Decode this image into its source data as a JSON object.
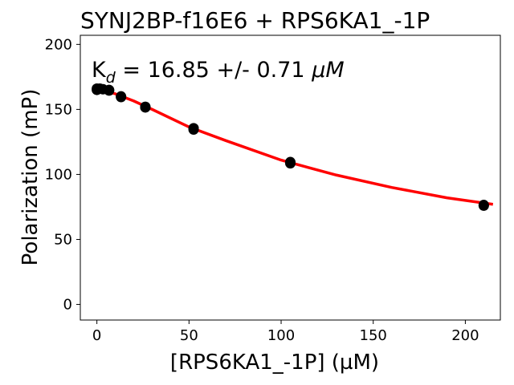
{
  "chart_data": {
    "type": "scatter",
    "title": "SYNJ2BP-f16E6 + RPS6KA1_-1P",
    "xlabel": "[RPS6KA1_-1P] (µM)",
    "ylabel": "Polarization (mP)",
    "annotation": {
      "prefix": "K",
      "subscript": "d",
      "text": " = 16.85 +/- 0.71 ",
      "unit": "μM"
    },
    "xlim": [
      -9,
      219
    ],
    "ylim": [
      -12,
      207
    ],
    "xticks": [
      0,
      50,
      100,
      150,
      200
    ],
    "yticks": [
      0,
      50,
      100,
      150,
      200
    ],
    "grid": false,
    "points": [
      {
        "x": 0,
        "y": 166
      },
      {
        "x": 0,
        "y": 165
      },
      {
        "x": 1.6,
        "y": 166
      },
      {
        "x": 3.3,
        "y": 165.5
      },
      {
        "x": 6.6,
        "y": 164.5
      },
      {
        "x": 6.6,
        "y": 165
      },
      {
        "x": 13.1,
        "y": 160
      },
      {
        "x": 13.1,
        "y": 159.5
      },
      {
        "x": 26.3,
        "y": 152
      },
      {
        "x": 26.3,
        "y": 151.5
      },
      {
        "x": 52.5,
        "y": 135.5
      },
      {
        "x": 52.5,
        "y": 134.5
      },
      {
        "x": 105,
        "y": 109.5
      },
      {
        "x": 105,
        "y": 108.5
      },
      {
        "x": 210,
        "y": 76.5
      },
      {
        "x": 210,
        "y": 76
      }
    ],
    "fit": {
      "x_range": [
        0,
        215
      ],
      "points": [
        [
          0,
          166
        ],
        [
          10,
          162
        ],
        [
          20,
          156.5
        ],
        [
          30,
          150
        ],
        [
          50,
          136.5
        ],
        [
          70,
          126
        ],
        [
          100,
          111
        ],
        [
          130,
          99.5
        ],
        [
          160,
          90
        ],
        [
          190,
          82
        ],
        [
          215,
          77
        ]
      ]
    },
    "colors": {
      "points": "#000000",
      "fit": "#ff0000",
      "axes": "#000000"
    }
  }
}
